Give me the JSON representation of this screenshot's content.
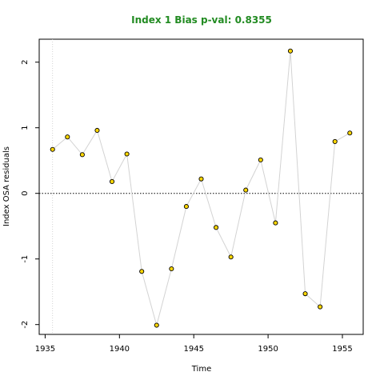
{
  "chart_data": {
    "type": "line",
    "title": "Index 1 Bias p-val: 0.8355",
    "title_color": "#228B22",
    "xlabel": "Time",
    "ylabel": "Index OSA residuals",
    "xlim": [
      1934.6,
      1956.4
    ],
    "ylim": [
      -2.15,
      2.35
    ],
    "x_ticks": [
      "1935",
      "1940",
      "1945",
      "1950",
      "1955"
    ],
    "y_ticks": [
      "-2",
      "-1",
      "0",
      "1",
      "2"
    ],
    "reference_line_y": 0,
    "reference_line_x": 1935.5,
    "point_color": "#FFD700",
    "line_color": "#D3D3D3",
    "series": [
      {
        "x": [
          1935.5,
          1936.5,
          1937.5,
          1938.5,
          1939.5,
          1940.5,
          1941.5,
          1942.5,
          1943.5,
          1944.5,
          1945.5,
          1946.5,
          1947.5,
          1948.5,
          1949.5,
          1950.5,
          1951.5,
          1952.5,
          1953.5,
          1954.5,
          1955.5
        ],
        "values": [
          0.67,
          0.86,
          0.59,
          0.96,
          0.18,
          0.6,
          -1.19,
          -2.01,
          -1.15,
          -0.2,
          0.22,
          -0.52,
          -0.97,
          0.05,
          0.51,
          -0.45,
          2.17,
          -1.53,
          -1.73,
          0.79,
          0.92
        ]
      }
    ]
  }
}
